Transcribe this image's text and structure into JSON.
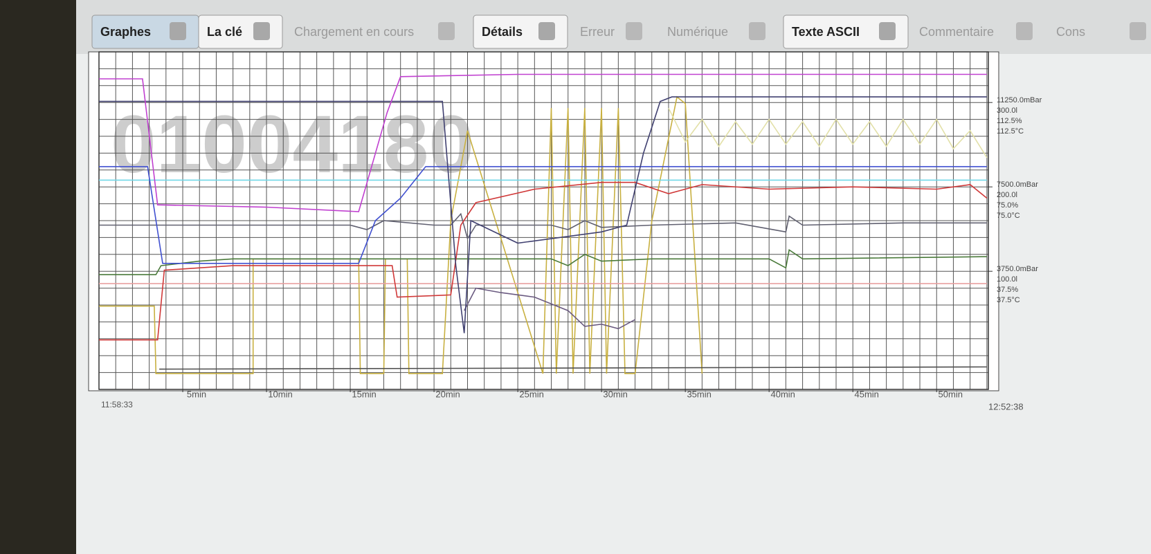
{
  "tabs": [
    {
      "label": "Graphes",
      "enabled": true,
      "selected": true
    },
    {
      "label": "La clé",
      "enabled": true,
      "selected": false
    },
    {
      "label": "Chargement en cours",
      "enabled": false,
      "selected": false
    },
    {
      "label": "Détails",
      "enabled": true,
      "selected": false
    },
    {
      "label": "Erreur",
      "enabled": false,
      "selected": false
    },
    {
      "label": "Numérique",
      "enabled": false,
      "selected": false
    },
    {
      "label": "Texte ASCII",
      "enabled": true,
      "selected": false
    },
    {
      "label": "Commentaire",
      "enabled": false,
      "selected": false
    },
    {
      "label": "Cons",
      "enabled": false,
      "selected": false
    }
  ],
  "chart_data": {
    "type": "line",
    "watermark": "01004180",
    "start_label": "11:58:33",
    "end_label": "12:52:38",
    "xlim": [
      0,
      54.08
    ],
    "xticks": [
      {
        "value": 5,
        "label": "5min"
      },
      {
        "value": 10,
        "label": "10min"
      },
      {
        "value": 15,
        "label": "15min"
      },
      {
        "value": 20,
        "label": "20min"
      },
      {
        "value": 25,
        "label": "25min"
      },
      {
        "value": 30,
        "label": "30min"
      },
      {
        "value": 35,
        "label": "35min"
      },
      {
        "value": 40,
        "label": "40min"
      },
      {
        "value": 45,
        "label": "45min"
      },
      {
        "value": 50,
        "label": "50min"
      }
    ],
    "ylim": [
      -15,
      135
    ],
    "ytick_groups": [
      {
        "value": 112.5,
        "labels": [
          "11250.0mBar",
          "300.0l",
          "112.5%",
          "112.5°C"
        ]
      },
      {
        "value": 75,
        "labels": [
          "7500.0mBar",
          "200.0l",
          "75.0%",
          "75.0°C"
        ]
      },
      {
        "value": 37.5,
        "labels": [
          "3750.0mBar",
          "100.0l",
          "37.5%",
          "37.5°C"
        ]
      }
    ],
    "grid": true,
    "grid_step": {
      "x": 1,
      "y": 7.5
    },
    "series": [
      {
        "color": "#c8b040",
        "x": [
          0,
          3.3,
          3.4,
          9.2,
          9.2,
          15.5,
          15.6,
          17.0,
          17.1,
          18.4,
          18.5,
          20.5,
          21,
          22,
          26.5,
          27,
          27.3,
          28,
          28.3,
          29,
          29.3,
          30,
          30.3,
          31,
          31.4,
          32,
          33,
          34.5,
          35,
          36
        ],
        "values": [
          22,
          22,
          -8,
          -8,
          43,
          43,
          -8,
          -8,
          43,
          43,
          -8,
          -8,
          60,
          100,
          -8,
          110,
          -8,
          110,
          -8,
          110,
          -8,
          110,
          -8,
          110,
          -8,
          -8,
          60,
          115,
          112,
          -8
        ]
      },
      {
        "color": "#e2e0a8",
        "x": [
          34,
          35,
          36,
          37,
          38,
          39,
          40,
          41,
          42,
          43,
          44,
          45,
          46,
          47,
          48,
          49,
          50,
          51,
          52,
          53
        ],
        "values": [
          110,
          95,
          105,
          93,
          104,
          94,
          105,
          94,
          104,
          93,
          105,
          94,
          104,
          93,
          105,
          94,
          105,
          92,
          100,
          88
        ]
      },
      {
        "color": "#505050",
        "x": [
          3.6,
          53
        ],
        "values": [
          -6,
          -5
        ]
      },
      {
        "color": "#e8a0a0",
        "x": [
          0,
          53
        ],
        "values": [
          32,
          32
        ]
      },
      {
        "color": "#70d8e8",
        "x": [
          0,
          53
        ],
        "values": [
          78,
          78
        ]
      },
      {
        "color": "#4a7a3a",
        "x": [
          0,
          3.4,
          3.7,
          6,
          8,
          20,
          27,
          28,
          29,
          30,
          33,
          40,
          41,
          41.2,
          42,
          53
        ],
        "values": [
          36,
          36,
          40,
          42,
          43,
          43,
          43,
          40,
          45,
          42,
          43,
          43,
          39,
          47,
          43,
          44
        ]
      },
      {
        "color": "#606070",
        "x": [
          0,
          15,
          16,
          17,
          20,
          21,
          21.6,
          22,
          22.5,
          27,
          28,
          29,
          30,
          33,
          38,
          41,
          41.2,
          42,
          48,
          53
        ],
        "values": [
          58,
          58,
          56,
          60,
          58,
          58,
          63,
          52,
          58,
          58,
          56,
          60,
          57,
          58,
          59,
          55,
          62,
          58,
          59,
          59
        ]
      },
      {
        "color": "#6a5a80",
        "x": [
          21.8,
          22.5,
          24,
          26,
          28,
          29,
          30,
          31,
          32
        ],
        "values": [
          20,
          30,
          28,
          26,
          20,
          13,
          14,
          12,
          16
        ]
      },
      {
        "color": "#d03838",
        "x": [
          0,
          3.5,
          3.9,
          8,
          17.5,
          17.8,
          21,
          21.6,
          22.5,
          26,
          30,
          32,
          34,
          36,
          40,
          45,
          50,
          52,
          53
        ],
        "values": [
          7,
          7,
          38,
          40,
          40,
          26,
          27,
          58,
          68,
          74,
          77,
          77,
          72,
          76,
          74,
          75,
          74,
          76,
          70
        ]
      },
      {
        "color": "#4050d0",
        "x": [
          0,
          2.9,
          3.8,
          15.5,
          16.5,
          18,
          19.5,
          53
        ],
        "values": [
          84,
          84,
          41,
          41,
          60,
          70,
          84,
          84
        ]
      },
      {
        "color": "#404070",
        "x": [
          0,
          20.5,
          21.3,
          21.8,
          22.2,
          25,
          30,
          31.5,
          32.5,
          33.5,
          34.2,
          53
        ],
        "values": [
          113,
          113,
          40,
          10,
          60,
          50,
          55,
          58,
          90,
          113,
          115,
          115
        ]
      },
      {
        "color": "#c040d0",
        "x": [
          0,
          2.6,
          3.5,
          10,
          15.5,
          17.2,
          18,
          25,
          53
        ],
        "values": [
          123,
          123,
          67,
          66,
          64,
          108,
          124,
          125,
          125
        ]
      }
    ]
  }
}
